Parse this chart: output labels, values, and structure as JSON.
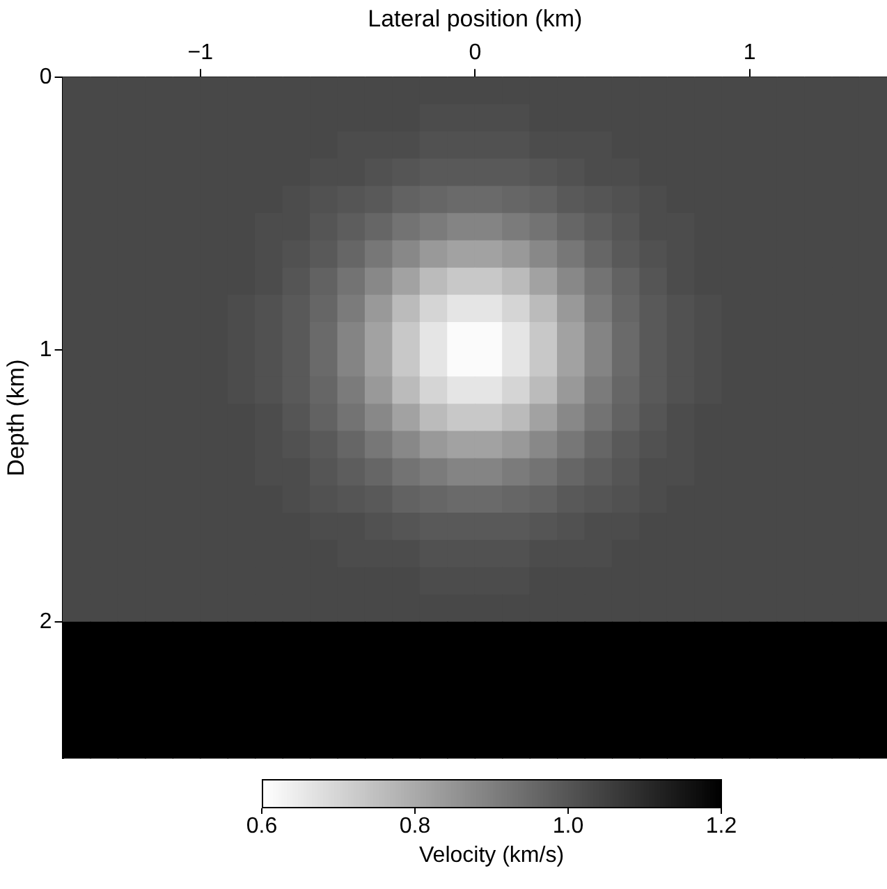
{
  "chart_data": {
    "type": "heatmap",
    "xlabel": "Lateral position (km)",
    "ylabel": "Depth (km)",
    "clabel": "Velocity (km/s)",
    "x": [
      -1.45,
      -1.35,
      -1.25,
      -1.15,
      -1.05,
      -0.95,
      -0.85,
      -0.75,
      -0.65,
      -0.55,
      -0.45,
      -0.35,
      -0.25,
      -0.15,
      -0.05,
      0.05,
      0.15,
      0.25,
      0.35,
      0.45,
      0.55,
      0.65,
      0.75,
      0.85,
      0.95,
      1.05,
      1.15,
      1.25,
      1.35,
      1.45
    ],
    "y": [
      0.05,
      0.15,
      0.25,
      0.35,
      0.45,
      0.55,
      0.65,
      0.75,
      0.85,
      0.95,
      1.05,
      1.15,
      1.25,
      1.35,
      1.45,
      1.55,
      1.65,
      1.75,
      1.85,
      1.95,
      2.05,
      2.15,
      2.25,
      2.35,
      2.45
    ],
    "cells": [
      [
        1.03,
        1.03,
        1.03,
        1.03,
        1.03,
        1.03,
        1.03,
        1.03,
        1.03,
        1.03,
        1.03,
        1.03,
        1.03,
        1.03,
        1.03,
        1.03,
        1.03,
        1.03,
        1.03,
        1.03,
        1.03,
        1.03,
        1.03,
        1.03,
        1.03,
        1.03,
        1.03,
        1.03,
        1.03,
        1.03
      ],
      [
        1.03,
        1.03,
        1.03,
        1.03,
        1.03,
        1.03,
        1.03,
        1.03,
        1.03,
        1.03,
        1.03,
        1.03,
        1.03,
        1.02,
        1.02,
        1.02,
        1.02,
        1.03,
        1.03,
        1.03,
        1.03,
        1.03,
        1.03,
        1.03,
        1.03,
        1.03,
        1.03,
        1.03,
        1.03,
        1.03
      ],
      [
        1.03,
        1.03,
        1.03,
        1.03,
        1.03,
        1.03,
        1.03,
        1.03,
        1.03,
        1.03,
        1.02,
        1.02,
        1.02,
        1.01,
        1.01,
        1.01,
        1.01,
        1.02,
        1.02,
        1.02,
        1.03,
        1.03,
        1.03,
        1.03,
        1.03,
        1.03,
        1.03,
        1.03,
        1.03,
        1.03
      ],
      [
        1.03,
        1.03,
        1.03,
        1.03,
        1.03,
        1.03,
        1.03,
        1.03,
        1.03,
        1.02,
        1.02,
        1.01,
        1.0,
        0.99,
        0.99,
        0.99,
        0.99,
        1.0,
        1.01,
        1.02,
        1.02,
        1.03,
        1.03,
        1.03,
        1.03,
        1.03,
        1.03,
        1.03,
        1.03,
        1.03
      ],
      [
        1.03,
        1.03,
        1.03,
        1.03,
        1.03,
        1.03,
        1.03,
        1.03,
        1.02,
        1.01,
        1.0,
        0.99,
        0.97,
        0.96,
        0.95,
        0.95,
        0.96,
        0.97,
        0.99,
        1.0,
        1.01,
        1.02,
        1.03,
        1.03,
        1.03,
        1.03,
        1.03,
        1.03,
        1.03,
        1.03
      ],
      [
        1.03,
        1.03,
        1.03,
        1.03,
        1.03,
        1.03,
        1.03,
        1.02,
        1.02,
        1.0,
        0.98,
        0.96,
        0.93,
        0.91,
        0.89,
        0.89,
        0.91,
        0.93,
        0.96,
        0.98,
        1.0,
        1.02,
        1.02,
        1.03,
        1.03,
        1.03,
        1.03,
        1.03,
        1.03,
        1.03
      ],
      [
        1.03,
        1.03,
        1.03,
        1.03,
        1.03,
        1.03,
        1.03,
        1.02,
        1.01,
        0.99,
        0.96,
        0.92,
        0.88,
        0.84,
        0.82,
        0.82,
        0.84,
        0.88,
        0.92,
        0.96,
        0.99,
        1.01,
        1.02,
        1.03,
        1.03,
        1.03,
        1.03,
        1.03,
        1.03,
        1.03
      ],
      [
        1.03,
        1.03,
        1.03,
        1.03,
        1.03,
        1.03,
        1.03,
        1.02,
        1.0,
        0.97,
        0.93,
        0.88,
        0.82,
        0.76,
        0.73,
        0.73,
        0.76,
        0.82,
        0.88,
        0.93,
        0.97,
        1.0,
        1.02,
        1.03,
        1.03,
        1.03,
        1.03,
        1.03,
        1.03,
        1.03
      ],
      [
        1.03,
        1.03,
        1.03,
        1.03,
        1.03,
        1.03,
        1.02,
        1.01,
        0.99,
        0.96,
        0.91,
        0.84,
        0.76,
        0.7,
        0.66,
        0.66,
        0.7,
        0.76,
        0.84,
        0.91,
        0.96,
        0.99,
        1.01,
        1.02,
        1.03,
        1.03,
        1.03,
        1.03,
        1.03,
        1.03
      ],
      [
        1.03,
        1.03,
        1.03,
        1.03,
        1.03,
        1.03,
        1.02,
        1.01,
        0.99,
        0.95,
        0.89,
        0.82,
        0.73,
        0.66,
        0.61,
        0.61,
        0.66,
        0.73,
        0.82,
        0.89,
        0.95,
        0.99,
        1.01,
        1.02,
        1.03,
        1.03,
        1.03,
        1.03,
        1.03,
        1.03
      ],
      [
        1.03,
        1.03,
        1.03,
        1.03,
        1.03,
        1.03,
        1.02,
        1.01,
        0.99,
        0.95,
        0.89,
        0.82,
        0.73,
        0.66,
        0.61,
        0.61,
        0.66,
        0.73,
        0.82,
        0.89,
        0.95,
        0.99,
        1.01,
        1.02,
        1.03,
        1.03,
        1.03,
        1.03,
        1.03,
        1.03
      ],
      [
        1.03,
        1.03,
        1.03,
        1.03,
        1.03,
        1.03,
        1.02,
        1.01,
        0.99,
        0.96,
        0.91,
        0.84,
        0.76,
        0.7,
        0.66,
        0.66,
        0.7,
        0.76,
        0.84,
        0.91,
        0.96,
        0.99,
        1.01,
        1.02,
        1.03,
        1.03,
        1.03,
        1.03,
        1.03,
        1.03
      ],
      [
        1.03,
        1.03,
        1.03,
        1.03,
        1.03,
        1.03,
        1.03,
        1.02,
        1.0,
        0.97,
        0.93,
        0.88,
        0.82,
        0.76,
        0.73,
        0.73,
        0.76,
        0.82,
        0.88,
        0.93,
        0.97,
        1.0,
        1.02,
        1.03,
        1.03,
        1.03,
        1.03,
        1.03,
        1.03,
        1.03
      ],
      [
        1.03,
        1.03,
        1.03,
        1.03,
        1.03,
        1.03,
        1.03,
        1.02,
        1.01,
        0.99,
        0.96,
        0.92,
        0.88,
        0.84,
        0.82,
        0.82,
        0.84,
        0.88,
        0.92,
        0.96,
        0.99,
        1.01,
        1.02,
        1.03,
        1.03,
        1.03,
        1.03,
        1.03,
        1.03,
        1.03
      ],
      [
        1.03,
        1.03,
        1.03,
        1.03,
        1.03,
        1.03,
        1.03,
        1.02,
        1.02,
        1.0,
        0.98,
        0.96,
        0.93,
        0.91,
        0.89,
        0.89,
        0.91,
        0.93,
        0.96,
        0.98,
        1.0,
        1.02,
        1.02,
        1.03,
        1.03,
        1.03,
        1.03,
        1.03,
        1.03,
        1.03
      ],
      [
        1.03,
        1.03,
        1.03,
        1.03,
        1.03,
        1.03,
        1.03,
        1.03,
        1.02,
        1.01,
        1.0,
        0.99,
        0.97,
        0.96,
        0.95,
        0.95,
        0.96,
        0.97,
        0.99,
        1.0,
        1.01,
        1.02,
        1.03,
        1.03,
        1.03,
        1.03,
        1.03,
        1.03,
        1.03,
        1.03
      ],
      [
        1.03,
        1.03,
        1.03,
        1.03,
        1.03,
        1.03,
        1.03,
        1.03,
        1.03,
        1.02,
        1.02,
        1.01,
        1.0,
        0.99,
        0.99,
        0.99,
        0.99,
        1.0,
        1.01,
        1.02,
        1.02,
        1.03,
        1.03,
        1.03,
        1.03,
        1.03,
        1.03,
        1.03,
        1.03,
        1.03
      ],
      [
        1.03,
        1.03,
        1.03,
        1.03,
        1.03,
        1.03,
        1.03,
        1.03,
        1.03,
        1.03,
        1.02,
        1.02,
        1.02,
        1.01,
        1.01,
        1.01,
        1.01,
        1.02,
        1.02,
        1.02,
        1.03,
        1.03,
        1.03,
        1.03,
        1.03,
        1.03,
        1.03,
        1.03,
        1.03,
        1.03
      ],
      [
        1.03,
        1.03,
        1.03,
        1.03,
        1.03,
        1.03,
        1.03,
        1.03,
        1.03,
        1.03,
        1.03,
        1.03,
        1.03,
        1.02,
        1.02,
        1.02,
        1.02,
        1.03,
        1.03,
        1.03,
        1.03,
        1.03,
        1.03,
        1.03,
        1.03,
        1.03,
        1.03,
        1.03,
        1.03,
        1.03
      ],
      [
        1.03,
        1.03,
        1.03,
        1.03,
        1.03,
        1.03,
        1.03,
        1.03,
        1.03,
        1.03,
        1.03,
        1.03,
        1.03,
        1.03,
        1.03,
        1.03,
        1.03,
        1.03,
        1.03,
        1.03,
        1.03,
        1.03,
        1.03,
        1.03,
        1.03,
        1.03,
        1.03,
        1.03,
        1.03,
        1.03
      ],
      [
        1.2,
        1.2,
        1.2,
        1.2,
        1.2,
        1.2,
        1.2,
        1.2,
        1.2,
        1.2,
        1.2,
        1.2,
        1.2,
        1.2,
        1.2,
        1.2,
        1.2,
        1.2,
        1.2,
        1.2,
        1.2,
        1.2,
        1.2,
        1.2,
        1.2,
        1.2,
        1.2,
        1.2,
        1.2,
        1.2
      ],
      [
        1.2,
        1.2,
        1.2,
        1.2,
        1.2,
        1.2,
        1.2,
        1.2,
        1.2,
        1.2,
        1.2,
        1.2,
        1.2,
        1.2,
        1.2,
        1.2,
        1.2,
        1.2,
        1.2,
        1.2,
        1.2,
        1.2,
        1.2,
        1.2,
        1.2,
        1.2,
        1.2,
        1.2,
        1.2,
        1.2
      ],
      [
        1.2,
        1.2,
        1.2,
        1.2,
        1.2,
        1.2,
        1.2,
        1.2,
        1.2,
        1.2,
        1.2,
        1.2,
        1.2,
        1.2,
        1.2,
        1.2,
        1.2,
        1.2,
        1.2,
        1.2,
        1.2,
        1.2,
        1.2,
        1.2,
        1.2,
        1.2,
        1.2,
        1.2,
        1.2,
        1.2
      ],
      [
        1.2,
        1.2,
        1.2,
        1.2,
        1.2,
        1.2,
        1.2,
        1.2,
        1.2,
        1.2,
        1.2,
        1.2,
        1.2,
        1.2,
        1.2,
        1.2,
        1.2,
        1.2,
        1.2,
        1.2,
        1.2,
        1.2,
        1.2,
        1.2,
        1.2,
        1.2,
        1.2,
        1.2,
        1.2,
        1.2
      ],
      [
        1.2,
        1.2,
        1.2,
        1.2,
        1.2,
        1.2,
        1.2,
        1.2,
        1.2,
        1.2,
        1.2,
        1.2,
        1.2,
        1.2,
        1.2,
        1.2,
        1.2,
        1.2,
        1.2,
        1.2,
        1.2,
        1.2,
        1.2,
        1.2,
        1.2,
        1.2,
        1.2,
        1.2,
        1.2,
        1.2
      ]
    ],
    "xlim": [
      -1.5,
      1.5
    ],
    "ylim": [
      2.5,
      0
    ],
    "xticks": [
      {
        "value": -1,
        "label": "−1"
      },
      0,
      1
    ],
    "yticks": [
      0,
      1,
      2
    ],
    "clim": [
      0.6,
      1.2
    ],
    "cticks": [
      0.6,
      0.8,
      {
        "value": 1,
        "label": "1.0"
      },
      1.2
    ]
  }
}
